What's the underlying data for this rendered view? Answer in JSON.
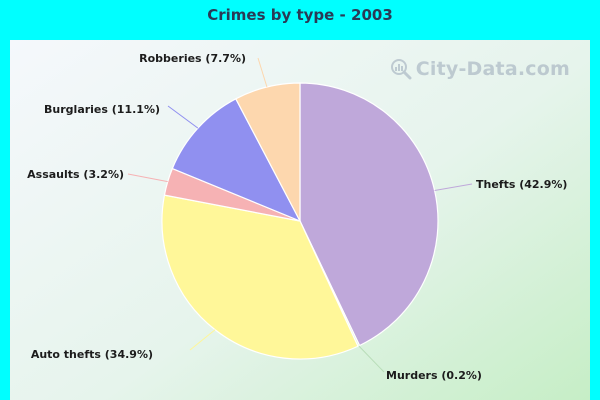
{
  "page": {
    "background": "#00ffff"
  },
  "watermark": {
    "text": "City-Data.com",
    "icon": "magnifier-chart-icon"
  },
  "chart_data": {
    "type": "pie",
    "title": "Crimes by type - 2003",
    "slices": [
      {
        "label": "Thefts (42.9%)",
        "value": 42.9,
        "color": "#bfa8da"
      },
      {
        "label": "Murders (0.2%)",
        "value": 0.2,
        "color": "#d8ecd8"
      },
      {
        "label": "Auto thefts (34.9%)",
        "value": 34.9,
        "color": "#fff799"
      },
      {
        "label": "Assaults (3.2%)",
        "value": 3.2,
        "color": "#f6b2b4"
      },
      {
        "label": "Burglaries (11.1%)",
        "value": 11.1,
        "color": "#9090f0"
      },
      {
        "label": "Robberies (7.7%)",
        "value": 7.7,
        "color": "#fdd7ae"
      }
    ],
    "start_angle": "12 o'clock",
    "direction": "clockwise",
    "legend": "none"
  }
}
